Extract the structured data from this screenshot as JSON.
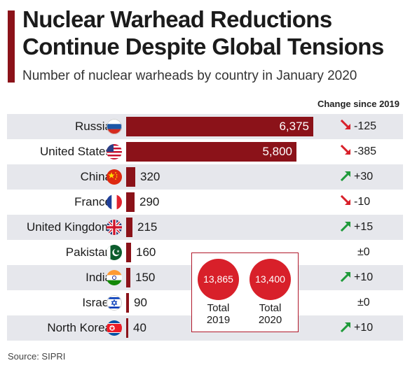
{
  "title_line1": "Nuclear Warhead Reductions",
  "title_line2": "Continue Despite Global Tensions",
  "subtitle": "Number of nuclear warheads by country in January 2020",
  "change_header": "Change since 2019",
  "source": "Source: SIPRI",
  "colors": {
    "accent": "#8b1219",
    "bar": "#8b1219",
    "circle": "#d8202a",
    "arrow_down": "#d8202a",
    "arrow_up": "#1f9a3a",
    "row_shade": "#e6e7ec"
  },
  "chart_data": {
    "type": "bar",
    "orientation": "horizontal",
    "categories": [
      "Russia",
      "United States",
      "China",
      "France",
      "United Kingdom",
      "Pakistan",
      "India",
      "Israel",
      "North Korea"
    ],
    "values": [
      6375,
      5800,
      320,
      290,
      215,
      160,
      150,
      90,
      40
    ],
    "value_labels": [
      "6,375",
      "5,800",
      "320",
      "290",
      "215",
      "160",
      "150",
      "90",
      "40"
    ],
    "changes": [
      "-125",
      "-385",
      "+30",
      "-10",
      "+15",
      "±0",
      "+10",
      "±0",
      "+10"
    ],
    "change_direction": [
      "down",
      "down",
      "up",
      "down",
      "up",
      "none",
      "up",
      "none",
      "up"
    ],
    "flag_icons": [
      "russia-flag-icon",
      "usa-flag-icon",
      "china-flag-icon",
      "france-flag-icon",
      "uk-flag-icon",
      "pakistan-flag-icon",
      "india-flag-icon",
      "israel-flag-icon",
      "north-korea-flag-icon"
    ],
    "xlim": [
      0,
      6375
    ],
    "grid": false
  },
  "totals": [
    {
      "value": "13,865",
      "label_line1": "Total",
      "label_line2": "2019"
    },
    {
      "value": "13,400",
      "label_line1": "Total",
      "label_line2": "2020"
    }
  ]
}
